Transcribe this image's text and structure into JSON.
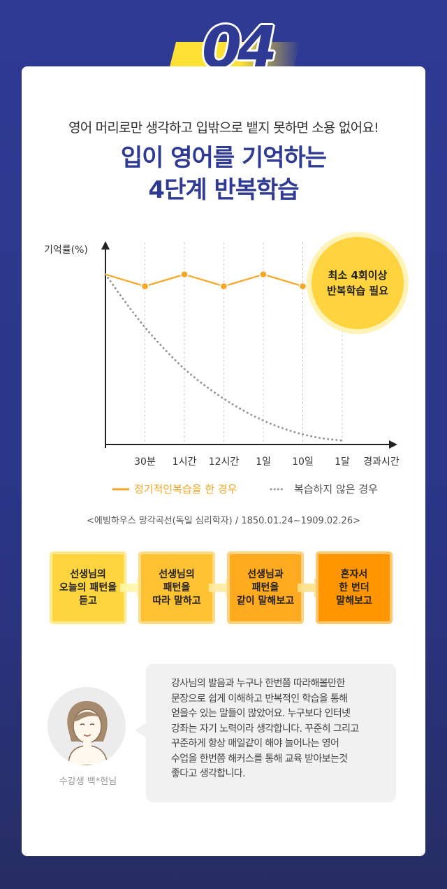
{
  "badge": {
    "number": "04"
  },
  "header": {
    "subtitle": "영어 머리로만 생각하고 입밖으로 뱉지 못하면 소용 없어요!",
    "title_line1": "입이 영어를 기억하는",
    "title_line2": "4단계 반복학습"
  },
  "chart_data": {
    "type": "line",
    "ylabel": "기억률(%)",
    "xlabel": "경과시간",
    "categories": [
      "30분",
      "1시간",
      "12시간",
      "1일",
      "10일",
      "1달"
    ],
    "series": [
      {
        "name": "정기적인복습을 한 경우",
        "style": "solid",
        "color": "#f5a623",
        "points": [
          [
            0,
            86
          ],
          [
            1,
            80
          ],
          [
            2,
            86
          ],
          [
            3,
            80
          ],
          [
            4,
            86
          ],
          [
            5,
            80
          ],
          [
            6,
            86
          ]
        ]
      },
      {
        "name": "복습하지 않은 경우",
        "style": "dotted",
        "color": "#999999",
        "points": [
          [
            0,
            86
          ],
          [
            0.5,
            72
          ],
          [
            1,
            59
          ],
          [
            1.5,
            48
          ],
          [
            2,
            38
          ],
          [
            2.5,
            30
          ],
          [
            3,
            23
          ],
          [
            3.5,
            17
          ],
          [
            4,
            12
          ],
          [
            4.5,
            8
          ],
          [
            5,
            5
          ],
          [
            5.5,
            3
          ],
          [
            6,
            2
          ]
        ]
      }
    ],
    "markers": [
      [
        1,
        80
      ],
      [
        2,
        86
      ],
      [
        3,
        80
      ],
      [
        4,
        86
      ],
      [
        5,
        80
      ]
    ],
    "ylim": [
      0,
      100
    ],
    "grid": "dashed vertical",
    "legend_placement": "bottom",
    "callout": {
      "line1": "최소 4회이상",
      "line2": "반복학습 필요"
    },
    "source": "<에빙하우스 망각곡선(독일 심리학자) / 1850.01.24~1909.02.26>"
  },
  "steps": [
    {
      "line1": "선생님의",
      "line2": "오늘의 패턴을",
      "line3": "듣고"
    },
    {
      "line1": "선생님의",
      "line2": "패턴을",
      "line3": "따라 말하고"
    },
    {
      "line1": "선생님과",
      "line2": "패턴을",
      "line3": "같이 말해보고"
    },
    {
      "line1": "혼자서",
      "line2": "한 번더",
      "line3": "말해보고"
    }
  ],
  "review": {
    "name": "수강생 백*현님",
    "lines": [
      "강사님의 발음과 누구나 한번쯤 따라해볼만한",
      "문장으로 쉽게 이해하고 반복적인 학습을 통해",
      "얻을수 있는 말들이 많았어요.  누구보다 인터넷",
      "강좌는 자기 노력이라 생각합니다. 꾸준히 그리고",
      "꾸준하게 항상 매일같이 해야 늘어나는 영어",
      "수업을 한번쯤 해커스를 통해 교육 받아보는것",
      "좋다고 생각합니다."
    ]
  },
  "colors": {
    "navy": "#2f3a94",
    "accent_yellow": "#ffe135",
    "orange": "#f5a623"
  }
}
